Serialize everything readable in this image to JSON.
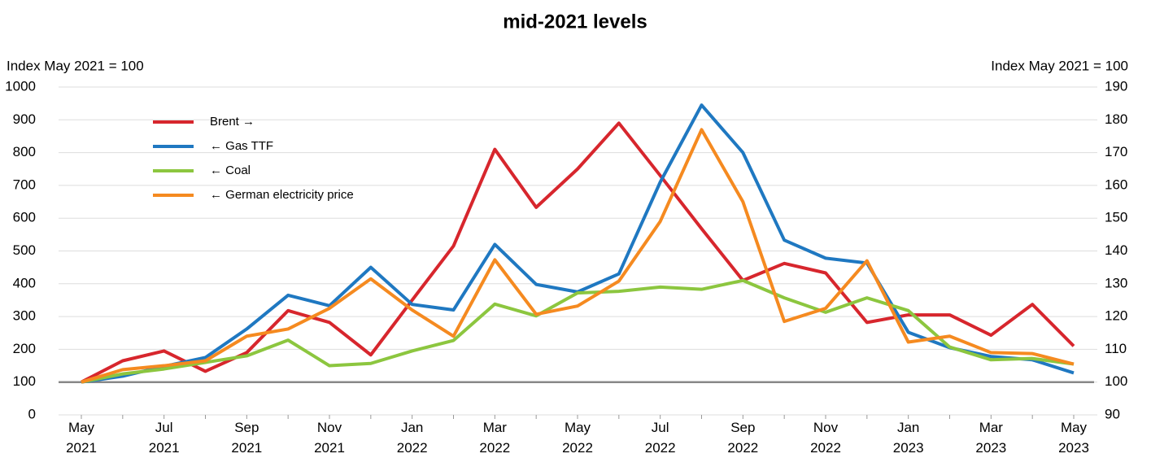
{
  "chart_data": {
    "type": "line",
    "title": "mid-2021 levels",
    "y_label": "Index May 2021 = 100",
    "y2_label": "Index May 2021 = 100",
    "categories": [
      "May 2021",
      null,
      "Jul 2021",
      null,
      "Sep 2021",
      null,
      "Nov 2021",
      null,
      "Jan 2022",
      null,
      "Mar 2022",
      null,
      "May 2022",
      null,
      "Jul 2022",
      null,
      "Sep 2022",
      null,
      "Nov 2022",
      null,
      "Jan 2023",
      null,
      "Mar 2023",
      null,
      "May 2023"
    ],
    "ylim": [
      0,
      1000
    ],
    "yticks": [
      0,
      100,
      200,
      300,
      400,
      500,
      600,
      700,
      800,
      900,
      1000
    ],
    "y2lim": [
      90,
      190
    ],
    "y2ticks": [
      90,
      100,
      110,
      120,
      130,
      140,
      150,
      160,
      170,
      180,
      190
    ],
    "grid": true,
    "legend": "upper left",
    "series": [
      {
        "name": "Brent →",
        "color": "#d7262d",
        "axis": "y2",
        "values": [
          100,
          106.5,
          109.5,
          103.3,
          109,
          121.8,
          118.2,
          108.3,
          125,
          141.5,
          171,
          153.3,
          165,
          179,
          163,
          146.8,
          131,
          136.2,
          133.3,
          118.2,
          120.5,
          120.5,
          114.3,
          123.7,
          111
        ]
      },
      {
        "name": "← Gas TTF",
        "color": "#1f78c1",
        "values": [
          100,
          118,
          148,
          175,
          262,
          365,
          333,
          450,
          337,
          320,
          520,
          398,
          375,
          430,
          710,
          945,
          800,
          533,
          478,
          463,
          252,
          205,
          178,
          168,
          128
        ]
      },
      {
        "name": "← Coal",
        "color": "#8cc63f",
        "values": [
          100,
          125,
          140,
          160,
          180,
          228,
          150,
          157,
          195,
          227,
          338,
          302,
          372,
          377,
          390,
          383,
          410,
          357,
          313,
          357,
          318,
          207,
          168,
          172,
          155
        ]
      },
      {
        "name": "← German electricity price",
        "color": "#f58a20",
        "values": [
          100,
          138,
          150,
          165,
          240,
          262,
          325,
          415,
          320,
          240,
          473,
          307,
          332,
          408,
          590,
          870,
          650,
          285,
          325,
          470,
          222,
          240,
          190,
          187,
          155
        ]
      }
    ]
  }
}
